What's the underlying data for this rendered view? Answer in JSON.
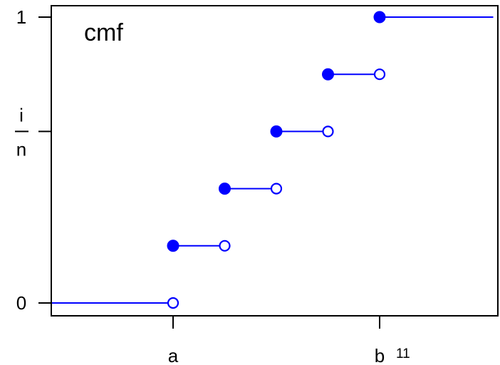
{
  "chart_data": {
    "type": "step",
    "title": "cmf",
    "xlabel": "",
    "ylabel": "",
    "x_tick_labels": [
      "a",
      "b"
    ],
    "x_tick_values": [
      1,
      5
    ],
    "x_superscript": "11",
    "y_tick_labels": [
      "0",
      "1"
    ],
    "y_tick_values": [
      0,
      1
    ],
    "y_mid_label": {
      "numerator": "i",
      "denominator": "n"
    },
    "y_mid_value": 0.6,
    "xlim": [
      -1.4,
      7.2
    ],
    "ylim": [
      -0.05,
      1.05
    ],
    "series": [
      {
        "color": "#0000ff",
        "steps": [
          {
            "x_start": -1.4,
            "x_end": 1,
            "y": 0.0,
            "closed_start": false,
            "open_end": true
          },
          {
            "x_start": 1,
            "x_end": 2,
            "y": 0.2,
            "closed_start": true,
            "open_end": true
          },
          {
            "x_start": 2,
            "x_end": 3,
            "y": 0.4,
            "closed_start": true,
            "open_end": true
          },
          {
            "x_start": 3,
            "x_end": 4,
            "y": 0.6,
            "closed_start": true,
            "open_end": true
          },
          {
            "x_start": 4,
            "x_end": 5,
            "y": 0.8,
            "closed_start": true,
            "open_end": true
          },
          {
            "x_start": 5,
            "x_end": 7.2,
            "y": 1.0,
            "closed_start": true,
            "open_end": false
          }
        ]
      }
    ],
    "grid": false,
    "legend": "none"
  }
}
